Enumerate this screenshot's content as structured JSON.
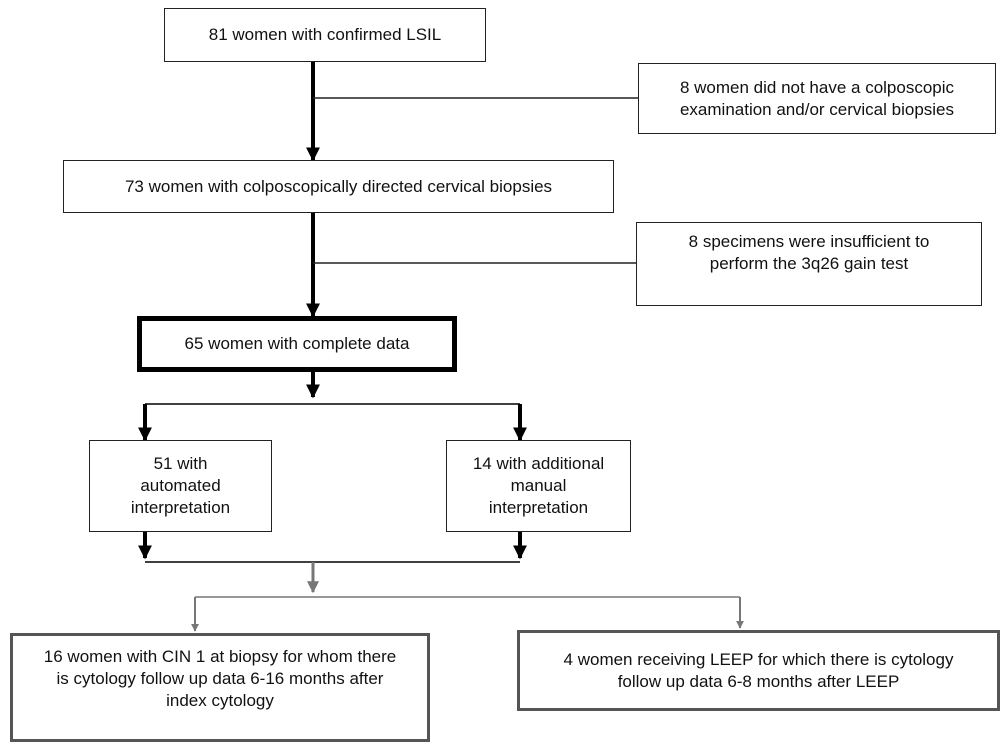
{
  "flowchart": {
    "start": "81 women with confirmed LSIL",
    "exclusion_1": "8 women did not have a colposcopic examination and/or cervical biopsies",
    "biopsies": "73 women with colposcopically directed cervical biopsies",
    "exclusion_2": "8 specimens were insufficient to perform the 3q26 gain test",
    "complete": "65 women with complete data",
    "branch_automated": "51 with automated interpretation",
    "branch_manual": "14 with additional manual interpretation",
    "outcome_cin1": "16 women with CIN 1 at biopsy for whom there is cytology follow up data 6-16 months after index cytology",
    "outcome_leep": "4 women receiving LEEP for which there is cytology follow up data 6-8 months after LEEP"
  },
  "colors": {
    "primary_stroke": "#000000",
    "secondary_stroke": "#777777"
  }
}
